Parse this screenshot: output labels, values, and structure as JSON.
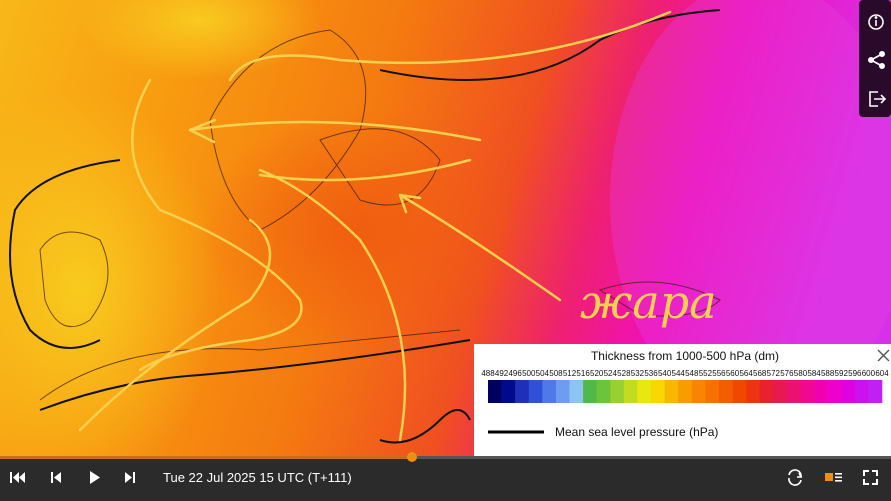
{
  "legend": {
    "title": "Thickness from 1000-500 hPa (dm)",
    "scale": {
      "ticks": [
        488,
        492,
        496,
        500,
        504,
        508,
        512,
        516,
        520,
        524,
        528,
        532,
        536,
        540,
        544,
        548,
        552,
        556,
        560,
        564,
        568,
        572,
        576,
        580,
        584,
        588,
        592,
        596,
        600,
        604
      ],
      "colors": [
        "#00005e",
        "#000a8c",
        "#1f2fb8",
        "#3050d8",
        "#4f78e8",
        "#6e9cf0",
        "#8cc4f4",
        "#52b848",
        "#6cc43c",
        "#98d030",
        "#c4dc20",
        "#e8e810",
        "#f8d800",
        "#f8b800",
        "#f89c00",
        "#f88400",
        "#f87000",
        "#f45c00",
        "#f04800",
        "#ec3410",
        "#e82030",
        "#e81850",
        "#ec1070",
        "#f00890",
        "#f000b0",
        "#ee00cc",
        "#e000e0",
        "#cc10ee",
        "#c020f4"
      ]
    },
    "line_label": "Mean sea level pressure (hPa)"
  },
  "annotation": "жара",
  "timeline": {
    "time": "Tue 22 Jul 2025 15 UTC (T+111)"
  }
}
